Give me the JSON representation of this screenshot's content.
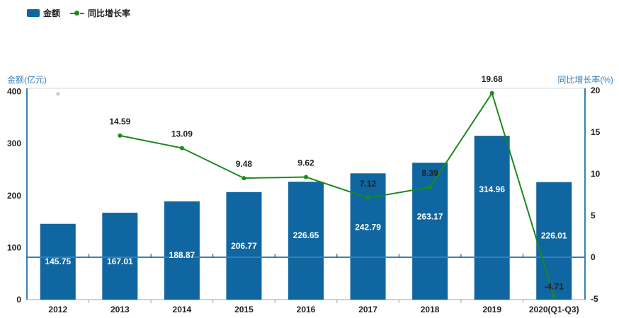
{
  "legend": {
    "bar_label": "金额",
    "line_label": "同比增长率"
  },
  "colors": {
    "bar": "#0f66a0",
    "line": "#1a8a1a",
    "axis": "#3a7fb5",
    "tick_text": "#222222"
  },
  "chart_data": {
    "type": "bar",
    "categories": [
      "2012",
      "2013",
      "2014",
      "2015",
      "2016",
      "2017",
      "2018",
      "2019",
      "2020(Q1-Q3)"
    ],
    "series": [
      {
        "name": "金额",
        "type": "bar",
        "axis": "left",
        "values": [
          145.75,
          167.01,
          188.87,
          206.77,
          226.65,
          242.79,
          263.17,
          314.96,
          226.01
        ],
        "labels": [
          "145.75",
          "167.01",
          "188.87",
          "206.77",
          "226.65",
          "242.79",
          "263.17",
          "314.96",
          "226.01"
        ]
      },
      {
        "name": "同比增长率",
        "type": "line",
        "axis": "right",
        "values": [
          null,
          14.59,
          13.09,
          9.48,
          9.62,
          7.12,
          8.39,
          19.68,
          -4.71
        ],
        "labels": [
          "",
          "14.59",
          "13.09",
          "9.48",
          "9.62",
          "7.12",
          "8.39",
          "19.68",
          "-4.71"
        ]
      }
    ],
    "y_left": {
      "label": "金额(亿元)",
      "ticks": [
        0,
        100,
        200,
        300,
        400
      ],
      "tick_labels": [
        "0",
        "100",
        "200",
        "300",
        "400"
      ]
    },
    "y_right": {
      "label": "同比增长率(%)",
      "ticks": [
        -5,
        0,
        5,
        10,
        15,
        20
      ],
      "tick_labels": [
        "-5",
        "0",
        "5",
        "10",
        "15",
        "20"
      ]
    }
  }
}
